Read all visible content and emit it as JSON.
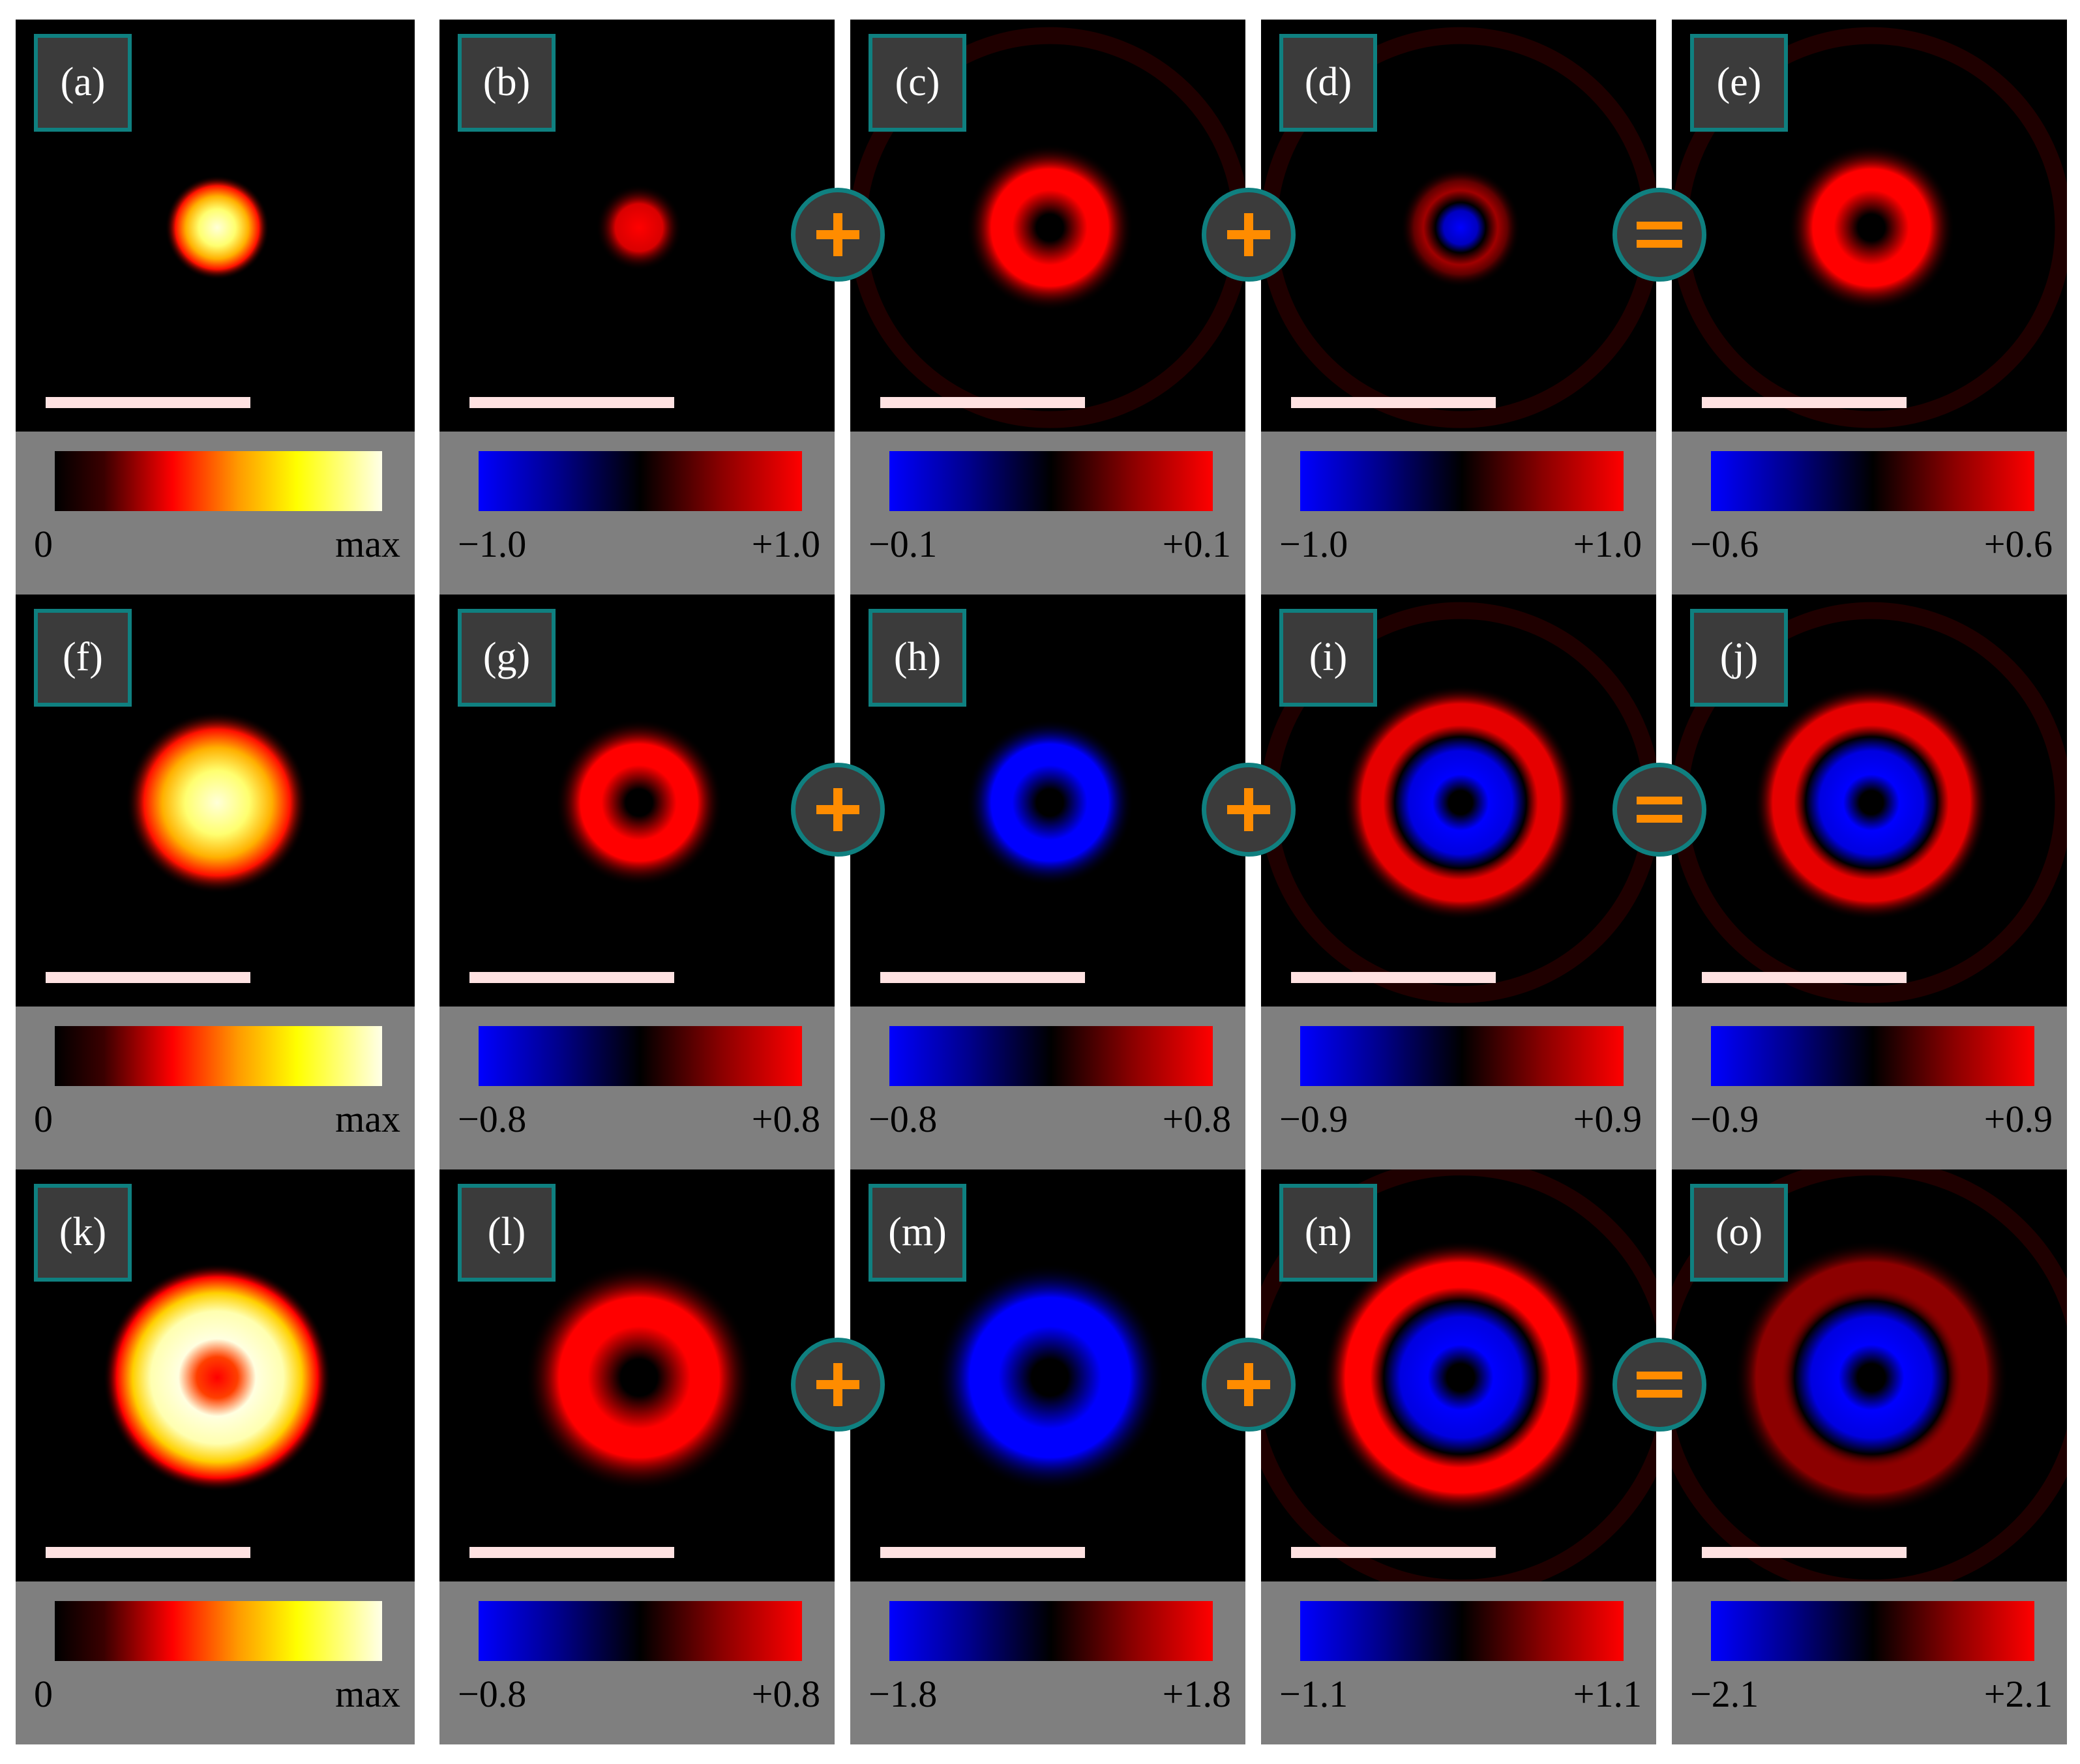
{
  "rows": [
    {
      "panels": [
        {
          "label": "(a)",
          "scale": "heat",
          "min": "0",
          "max": "max",
          "field": {
            "kind": "spot",
            "peak": 1.0
          }
        },
        {
          "label": "(b)",
          "scale": "div",
          "min": "−1.0",
          "max": "+1.0",
          "field": {
            "kind": "spot",
            "peak": 0.75
          }
        },
        {
          "label": "(c)",
          "scale": "div",
          "min": "−0.1",
          "max": "+0.1",
          "field": {
            "kind": "ring",
            "peak": 1.0,
            "faint_rings": true
          }
        },
        {
          "label": "(d)",
          "scale": "div",
          "min": "−1.0",
          "max": "+1.0",
          "field": {
            "kind": "core-ring",
            "core": -0.9,
            "ring": 0.35,
            "faint_rings": true
          }
        },
        {
          "label": "(e)",
          "scale": "div",
          "min": "−0.6",
          "max": "+0.6",
          "field": {
            "kind": "ring",
            "peak": 1.0,
            "faint_rings": true
          }
        }
      ],
      "operators": [
        "+",
        "+",
        "="
      ]
    },
    {
      "panels": [
        {
          "label": "(f)",
          "scale": "heat",
          "min": "0",
          "max": "max",
          "field": {
            "kind": "spot-large",
            "peak": 1.0
          }
        },
        {
          "label": "(g)",
          "scale": "div",
          "min": "−0.8",
          "max": "+0.8",
          "field": {
            "kind": "ring",
            "peak": 1.0
          }
        },
        {
          "label": "(h)",
          "scale": "div",
          "min": "−0.8",
          "max": "+0.8",
          "field": {
            "kind": "ring",
            "peak": -1.0
          }
        },
        {
          "label": "(i)",
          "scale": "div",
          "min": "−0.9",
          "max": "+0.9",
          "field": {
            "kind": "double",
            "inner": -1.0,
            "outer": 0.9,
            "faint_rings": true
          }
        },
        {
          "label": "(j)",
          "scale": "div",
          "min": "−0.9",
          "max": "+0.9",
          "field": {
            "kind": "double",
            "inner": -1.0,
            "outer": 0.9,
            "faint_rings": true
          }
        }
      ],
      "operators": [
        "+",
        "+",
        "="
      ]
    },
    {
      "panels": [
        {
          "label": "(k)",
          "scale": "heat",
          "min": "0",
          "max": "max",
          "field": {
            "kind": "ring-large",
            "peak": 1.0
          }
        },
        {
          "label": "(l)",
          "scale": "div",
          "min": "−0.8",
          "max": "+0.8",
          "field": {
            "kind": "ring-large",
            "peak": 1.0
          }
        },
        {
          "label": "(m)",
          "scale": "div",
          "min": "−1.8",
          "max": "+1.8",
          "field": {
            "kind": "ring-large",
            "peak": -1.0
          }
        },
        {
          "label": "(n)",
          "scale": "div",
          "min": "−1.1",
          "max": "+1.1",
          "field": {
            "kind": "double-large",
            "inner": -1.0,
            "outer": 1.0,
            "faint_rings": true
          }
        },
        {
          "label": "(o)",
          "scale": "div",
          "min": "−2.1",
          "max": "+2.1",
          "field": {
            "kind": "double-large",
            "inner": -1.0,
            "outer": 0.55,
            "faint_rings": true
          }
        }
      ],
      "operators": [
        "+",
        "+",
        "="
      ]
    }
  ]
}
